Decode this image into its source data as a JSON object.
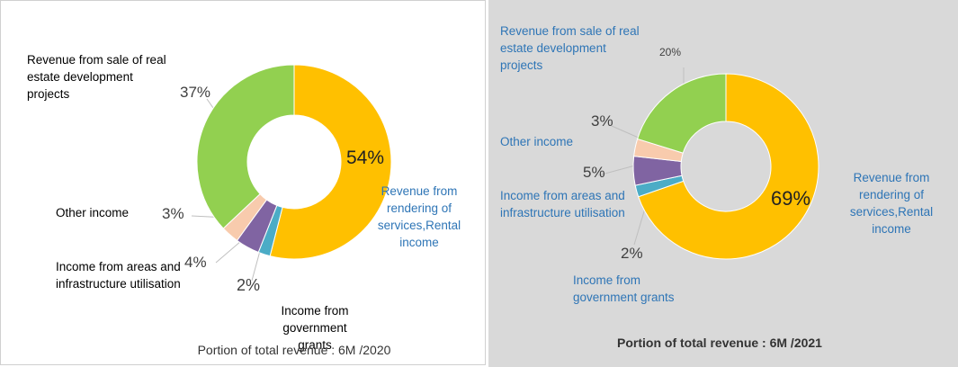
{
  "chart_data": [
    {
      "type": "pie",
      "donut": true,
      "title": "Portion of total revenue : 6M /2020",
      "categories": [
        "Revenue from rendering of services,Rental income",
        "Income from government grants",
        "Income from areas and infrastructure utilisation",
        "Other income",
        "Revenue from sale of real estate development projects"
      ],
      "values": [
        54,
        2,
        4,
        3,
        37
      ],
      "value_labels": [
        "54%",
        "2%",
        "4%",
        "3%",
        "37%"
      ],
      "colors": [
        "#ffc000",
        "#4bacc6",
        "#8064a2",
        "#f8cbad",
        "#92d050"
      ]
    },
    {
      "type": "pie",
      "donut": true,
      "title": "Portion of total revenue : 6M /2021",
      "categories": [
        "Revenue from rendering of services,Rental income",
        "Income from government grants",
        "Income from areas and infrastructure utilisation",
        "Other income",
        "Revenue from sale of real estate development projects"
      ],
      "values": [
        69,
        2,
        5,
        3,
        20
      ],
      "value_labels": [
        "69%",
        "2%",
        "5%",
        "3%",
        "20%"
      ],
      "colors": [
        "#ffc000",
        "#4bacc6",
        "#8064a2",
        "#f8cbad",
        "#92d050"
      ]
    }
  ]
}
